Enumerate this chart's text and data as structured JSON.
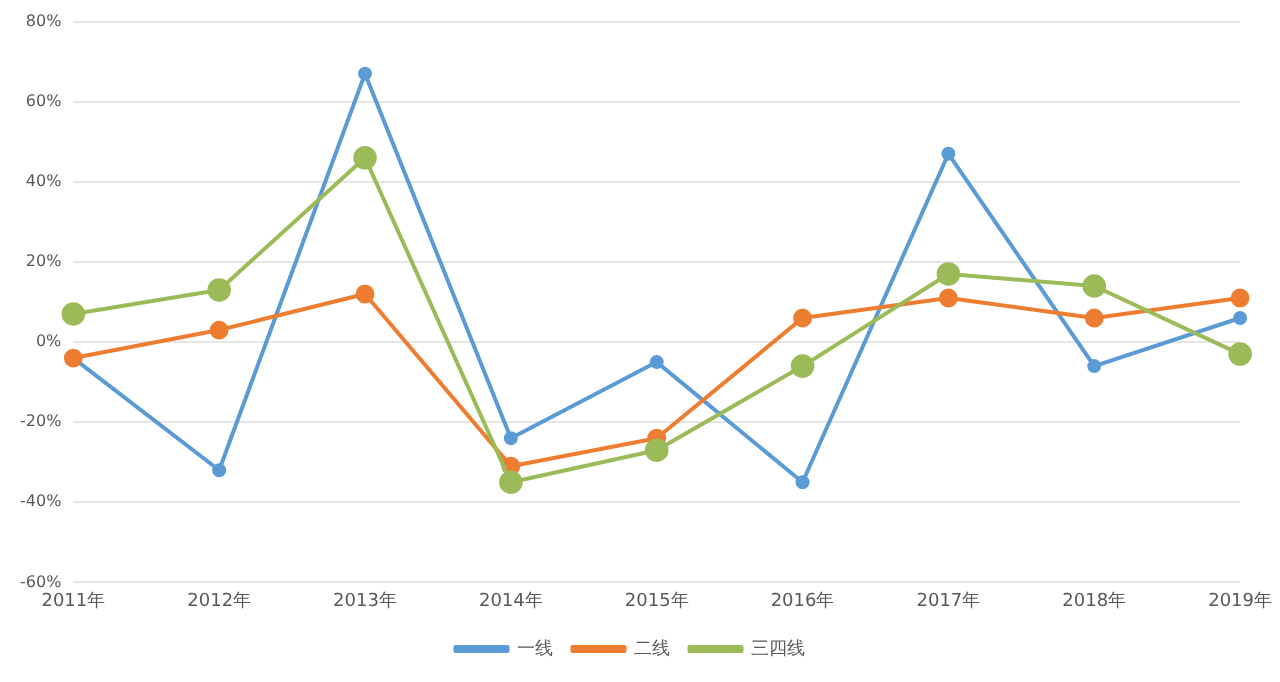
{
  "chart_data": {
    "type": "line",
    "categories": [
      "2011年",
      "2012年",
      "2013年",
      "2014年",
      "2015年",
      "2016年",
      "2017年",
      "2018年",
      "2019年"
    ],
    "series": [
      {
        "name": "一线",
        "color": "#5b9bd5",
        "values": [
          -4,
          -32,
          67,
          -24,
          -5,
          -35,
          47,
          -6,
          6
        ]
      },
      {
        "name": "二线",
        "color": "#ed7d31",
        "values": [
          -4,
          3,
          12,
          -31,
          -24,
          6,
          11,
          6,
          11
        ]
      },
      {
        "name": "三四线",
        "color": "#9bbb59",
        "values": [
          7,
          13,
          46,
          -35,
          -27,
          -6,
          17,
          14,
          -3
        ]
      }
    ],
    "ylim": [
      -60,
      80
    ],
    "yticks": [
      {
        "value": -60,
        "label": "-60%"
      },
      {
        "value": -40,
        "label": "-40%"
      },
      {
        "value": -20,
        "label": "-20%"
      },
      {
        "value": 0,
        "label": "0%"
      },
      {
        "value": 20,
        "label": "20%"
      },
      {
        "value": 40,
        "label": "40%"
      },
      {
        "value": 60,
        "label": "60%"
      },
      {
        "value": 80,
        "label": "80%"
      }
    ],
    "grid": "y",
    "legend": "bottom",
    "marker": "circle",
    "line_style": "solid"
  }
}
